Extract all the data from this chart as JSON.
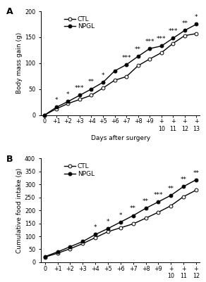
{
  "panel_A": {
    "label": "A",
    "x": [
      0,
      1,
      2,
      3,
      4,
      5,
      6,
      7,
      8,
      9,
      10,
      11,
      12,
      13
    ],
    "ctl": [
      0,
      12,
      22,
      30,
      38,
      52,
      67,
      74,
      95,
      108,
      120,
      138,
      153,
      157
    ],
    "npgl": [
      0,
      15,
      26,
      38,
      50,
      63,
      85,
      97,
      113,
      128,
      133,
      148,
      163,
      175
    ],
    "ylabel": "Body mass gain (g)",
    "xlabel": "Days after surgery",
    "ylim": [
      0,
      200
    ],
    "yticks": [
      0,
      50,
      100,
      150,
      200
    ],
    "xtick_labels": [
      "0",
      "+1",
      "+2",
      "+3",
      "+4",
      "+5",
      "+6",
      "+7",
      "+8",
      "+9",
      "+10",
      "+11",
      "+12",
      "+13"
    ],
    "significance": {
      "1": "*",
      "2": "*",
      "3": "***",
      "4": "**",
      "5": "*",
      "7": "***",
      "8": "**",
      "9": "***",
      "10": "***",
      "11": "***",
      "12": "**",
      "13": "*"
    }
  },
  "panel_B": {
    "label": "B",
    "x": [
      0,
      1,
      2,
      3,
      4,
      5,
      6,
      7,
      8,
      9,
      10,
      11,
      12
    ],
    "ctl": [
      20,
      35,
      52,
      72,
      95,
      118,
      133,
      148,
      170,
      193,
      218,
      253,
      278
    ],
    "npgl": [
      22,
      40,
      60,
      80,
      107,
      130,
      155,
      180,
      208,
      233,
      258,
      292,
      318
    ],
    "ylabel": "Cumulative food intake (g)",
    "xlabel": "Days after surgery",
    "ylim": [
      0,
      400
    ],
    "yticks": [
      0,
      50,
      100,
      150,
      200,
      250,
      300,
      350,
      400
    ],
    "xtick_labels": [
      "0",
      "+1",
      "+2",
      "+3",
      "+4",
      "+5",
      "+6",
      "+7",
      "+8",
      "+9",
      "+10",
      "+11",
      "+12"
    ],
    "significance": {
      "4": "*",
      "5": "*",
      "6": "*",
      "7": "**",
      "8": "**",
      "9": "***",
      "10": "**",
      "11": "**",
      "12": "**"
    }
  },
  "line_color": "#000000",
  "marker_ctl": "o",
  "marker_npgl": "o",
  "marker_face_ctl": "white",
  "marker_face_npgl": "black",
  "markersize": 3.5,
  "linewidth": 1.0,
  "fontsize_label": 6.5,
  "fontsize_tick": 5.8,
  "fontsize_legend": 6.5,
  "fontsize_sig": 6.5,
  "fontsize_panel_label": 9,
  "bg_color": "#ffffff"
}
